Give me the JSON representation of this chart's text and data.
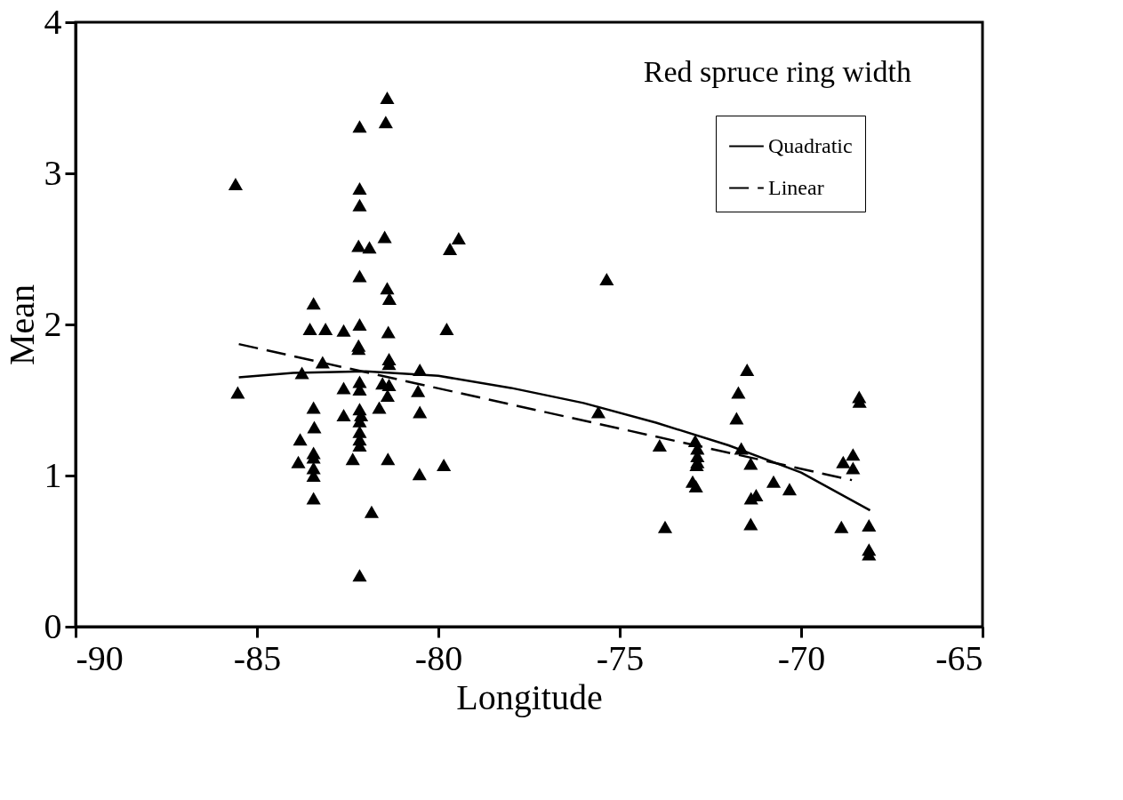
{
  "chart_data": {
    "type": "scatter",
    "xlabel": "Longitude",
    "ylabel": "Mean",
    "annotations": [
      "Red spruce ring width"
    ],
    "xlim": [
      -90,
      -65
    ],
    "xticks": [
      -90,
      -85,
      -80,
      -75,
      -70,
      -65
    ],
    "ylim": [
      0,
      4
    ],
    "yticks": [
      0,
      1,
      2,
      3,
      4
    ],
    "grid": false,
    "legend": "top right",
    "series": [
      {
        "marker": "triangle",
        "color": "#000000",
        "x": [
          -81.41,
          -81.45,
          -82.17,
          -85.59,
          -82.17,
          -82.17,
          -81.48,
          -82.2,
          -81.9,
          -79.44,
          -79.68,
          -82.17,
          -81.41,
          -81.35,
          -83.44,
          -83.54,
          -83.11,
          -82.61,
          -82.17,
          -81.38,
          -79.77,
          -82.2,
          -82.2,
          -83.19,
          -81.36,
          -81.36,
          -83.76,
          -80.51,
          -85.53,
          -82.61,
          -82.17,
          -82.17,
          -81.54,
          -81.36,
          -81.4,
          -80.56,
          -81.63,
          -83.44,
          -82.61,
          -82.17,
          -82.13,
          -82.17,
          -82.17,
          -82.17,
          -82.17,
          -80.51,
          -83.42,
          -83.81,
          -83.44,
          -83.44,
          -82.36,
          -81.39,
          -83.86,
          -83.44,
          -83.44,
          -80.52,
          -79.85,
          -83.44,
          -81.84,
          -82.17,
          -75.36,
          -75.59,
          -73.9,
          -73.75,
          -72.92,
          -72.86,
          -72.86,
          -72.86,
          -72.88,
          -72.99,
          -72.9,
          -71.49,
          -71.73,
          -71.78,
          -71.65,
          -71.39,
          -71.24,
          -71.38,
          -71.39,
          -70.76,
          -70.32,
          -68.4,
          -68.39,
          -68.57,
          -68.84,
          -68.57,
          -68.89,
          -68.13,
          -68.13,
          -68.13
        ],
        "values": [
          3.5,
          3.34,
          3.31,
          2.93,
          2.9,
          2.79,
          2.58,
          2.52,
          2.51,
          2.57,
          2.5,
          2.32,
          2.24,
          2.17,
          2.14,
          1.97,
          1.97,
          1.96,
          2.0,
          1.95,
          1.97,
          1.86,
          1.84,
          1.75,
          1.77,
          1.74,
          1.68,
          1.7,
          1.55,
          1.58,
          1.62,
          1.57,
          1.61,
          1.6,
          1.53,
          1.56,
          1.45,
          1.45,
          1.4,
          1.44,
          1.4,
          1.36,
          1.29,
          1.24,
          1.2,
          1.42,
          1.32,
          1.24,
          1.15,
          1.12,
          1.11,
          1.11,
          1.09,
          1.05,
          1.0,
          1.01,
          1.07,
          0.85,
          0.76,
          0.34,
          2.3,
          1.42,
          1.2,
          0.66,
          1.23,
          1.18,
          1.13,
          1.09,
          1.07,
          0.96,
          0.93,
          1.7,
          1.55,
          1.38,
          1.18,
          1.08,
          0.87,
          0.85,
          0.68,
          0.96,
          0.91,
          1.52,
          1.49,
          1.14,
          1.09,
          1.05,
          0.66,
          0.67,
          0.51,
          0.48
        ]
      },
      {
        "type": "line",
        "name": "Quadratic",
        "color": "#000000",
        "line_style": "solid",
        "marker": "none",
        "x": [
          -85.5,
          -84,
          -82,
          -80,
          -78,
          -76,
          -74,
          -72,
          -70,
          -68.1
        ],
        "values": [
          1.65,
          1.68,
          1.69,
          1.66,
          1.58,
          1.48,
          1.35,
          1.2,
          1.02,
          0.77
        ]
      },
      {
        "type": "line",
        "name": "Linear",
        "color": "#000000",
        "line_style": "dashed",
        "marker": "none",
        "x": [
          -85.5,
          -68.6
        ],
        "values": [
          1.87,
          0.97
        ]
      }
    ]
  }
}
